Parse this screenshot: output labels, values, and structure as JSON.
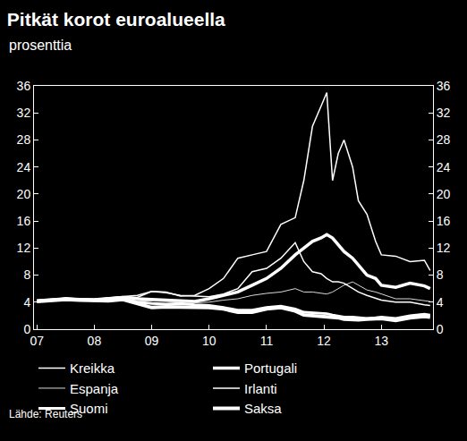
{
  "chart_data": {
    "type": "line",
    "title": "Pitkät korot euroalueella",
    "subtitle": "prosenttia",
    "source": "Lähde: Reuters",
    "x": [
      2007,
      2007.25,
      2007.5,
      2007.75,
      2008,
      2008.25,
      2008.5,
      2008.75,
      2009,
      2009.25,
      2009.5,
      2009.75,
      2010,
      2010.25,
      2010.5,
      2010.75,
      2011,
      2011.25,
      2011.5,
      2011.65,
      2011.8,
      2011.95,
      2012.05,
      2012.15,
      2012.25,
      2012.35,
      2012.5,
      2012.6,
      2012.75,
      2012.9,
      2013,
      2013.25,
      2013.5,
      2013.75,
      2013.85
    ],
    "xlim": [
      2006.95,
      2013.9
    ],
    "xticks": [
      {
        "value": 2007,
        "label": "07"
      },
      {
        "value": 2008,
        "label": "08"
      },
      {
        "value": 2009,
        "label": "09"
      },
      {
        "value": 2010,
        "label": "10"
      },
      {
        "value": 2011,
        "label": "11"
      },
      {
        "value": 2012,
        "label": "12"
      },
      {
        "value": 2013,
        "label": "13"
      }
    ],
    "ylim": [
      0,
      36
    ],
    "yticks": [
      0,
      4,
      8,
      12,
      16,
      20,
      24,
      28,
      32,
      36
    ],
    "y2lim": [
      0,
      36
    ],
    "y2ticks": [
      0,
      4,
      8,
      12,
      16,
      20,
      24,
      28,
      32,
      36
    ],
    "grid": false,
    "legend": "bottom",
    "series": [
      {
        "name": "Kreikka",
        "color": "#ffffff",
        "line_style": "solid",
        "values": [
          4.2,
          4.3,
          4.6,
          4.4,
          4.4,
          4.6,
          4.8,
          4.7,
          5.6,
          5.5,
          4.9,
          5.0,
          6.0,
          7.5,
          10.5,
          11.0,
          11.5,
          15.5,
          16.5,
          22,
          30,
          33,
          35,
          22,
          26,
          28,
          24,
          19,
          17,
          13,
          11,
          10.8,
          10,
          10.2,
          8.7
        ]
      },
      {
        "name": "Portugali",
        "color": "#ffffff",
        "line_style": "solid",
        "values": [
          4.2,
          4.3,
          4.5,
          4.4,
          4.3,
          4.5,
          4.7,
          4.5,
          4.4,
          4.3,
          4.2,
          4.1,
          4.5,
          5.0,
          5.5,
          6.5,
          7.5,
          9,
          11,
          12,
          13,
          13.5,
          14,
          13.5,
          12.5,
          11.5,
          10.5,
          9.5,
          8,
          7.5,
          6.5,
          6.2,
          6.8,
          6.4,
          6.0
        ]
      },
      {
        "name": "Espanja",
        "color": "#d9d9d9",
        "line_style": "solid",
        "values": [
          4.2,
          4.3,
          4.5,
          4.3,
          4.3,
          4.5,
          4.6,
          4.2,
          4.2,
          4.1,
          4.0,
          3.9,
          4.0,
          4.3,
          4.5,
          5.0,
          5.3,
          5.5,
          6.0,
          5.5,
          5.5,
          5.3,
          5.2,
          5.5,
          6.0,
          6.5,
          7.0,
          6.5,
          5.8,
          5.5,
          5.2,
          4.5,
          4.5,
          4.2,
          4.1
        ]
      },
      {
        "name": "Irlanti",
        "color": "#ffffff",
        "line_style": "solid",
        "values": [
          4.2,
          4.3,
          4.6,
          4.5,
          4.5,
          4.7,
          4.8,
          5.0,
          5.6,
          5.4,
          5.0,
          4.9,
          4.8,
          5.2,
          6.0,
          8.5,
          9,
          10.5,
          12.8,
          10,
          8.5,
          8.2,
          7.5,
          7.0,
          7.0,
          6.8,
          6.0,
          5.5,
          5.0,
          4.6,
          4.3,
          4.0,
          4.0,
          3.6,
          3.5
        ]
      },
      {
        "name": "Suomi",
        "color": "#ffffff",
        "line_style": "solid",
        "values": [
          4.2,
          4.3,
          4.5,
          4.4,
          4.3,
          4.4,
          4.5,
          4.0,
          3.8,
          3.7,
          3.8,
          3.6,
          3.5,
          3.2,
          2.8,
          2.8,
          3.2,
          3.4,
          3.0,
          2.5,
          2.4,
          2.3,
          2.3,
          2.1,
          2.0,
          1.8,
          1.8,
          1.7,
          1.6,
          1.7,
          1.8,
          1.6,
          2.0,
          2.2,
          2.1
        ]
      },
      {
        "name": "Saksa",
        "color": "#ffffff",
        "line_style": "solid",
        "values": [
          4.1,
          4.2,
          4.4,
          4.3,
          4.2,
          4.2,
          4.4,
          3.8,
          3.2,
          3.3,
          3.3,
          3.2,
          3.2,
          3.0,
          2.5,
          2.5,
          3.0,
          3.2,
          2.7,
          2.1,
          2.0,
          1.9,
          1.9,
          1.8,
          1.7,
          1.5,
          1.4,
          1.4,
          1.5,
          1.5,
          1.6,
          1.3,
          1.7,
          1.9,
          1.8
        ]
      }
    ]
  }
}
